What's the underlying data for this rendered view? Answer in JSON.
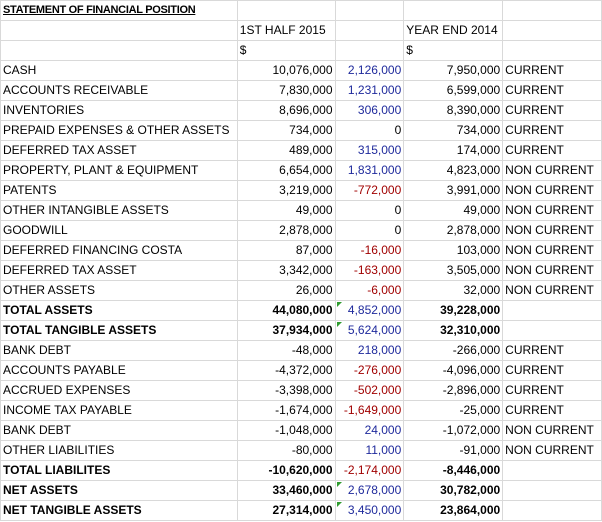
{
  "title": "STATEMENT OF FINANCIAL POSITION",
  "headers": {
    "col1": "1ST HALF 2015",
    "col3": "YEAR END 2014",
    "currency1": "$",
    "currency3": "$"
  },
  "rows": [
    {
      "label": "CASH",
      "h1": "10,076,000",
      "change": "2,126,000",
      "change_color": "blue",
      "ye": "7,950,000",
      "class": "CURRENT",
      "bold": false,
      "flag": false
    },
    {
      "label": "ACCOUNTS RECEIVABLE",
      "h1": "7,830,000",
      "change": "1,231,000",
      "change_color": "blue",
      "ye": "6,599,000",
      "class": "CURRENT",
      "bold": false,
      "flag": false
    },
    {
      "label": "INVENTORIES",
      "h1": "8,696,000",
      "change": "306,000",
      "change_color": "blue",
      "ye": "8,390,000",
      "class": "CURRENT",
      "bold": false,
      "flag": false
    },
    {
      "label": "PREPAID EXPENSES & OTHER ASSETS",
      "h1": "734,000",
      "change": "0",
      "change_color": "black",
      "ye": "734,000",
      "class": "CURRENT",
      "bold": false,
      "flag": false
    },
    {
      "label": "DEFERRED TAX ASSET",
      "h1": "489,000",
      "change": "315,000",
      "change_color": "blue",
      "ye": "174,000",
      "class": "CURRENT",
      "bold": false,
      "flag": false
    },
    {
      "label": "PROPERTY, PLANT & EQUIPMENT",
      "h1": "6,654,000",
      "change": "1,831,000",
      "change_color": "blue",
      "ye": "4,823,000",
      "class": "NON CURRENT",
      "bold": false,
      "flag": false
    },
    {
      "label": "PATENTS",
      "h1": "3,219,000",
      "change": "-772,000",
      "change_color": "red",
      "ye": "3,991,000",
      "class": "NON CURRENT",
      "bold": false,
      "flag": false
    },
    {
      "label": "OTHER INTANGIBLE ASSETS",
      "h1": "49,000",
      "change": "0",
      "change_color": "black",
      "ye": "49,000",
      "class": "NON CURRENT",
      "bold": false,
      "flag": false
    },
    {
      "label": "GOODWILL",
      "h1": "2,878,000",
      "change": "0",
      "change_color": "black",
      "ye": "2,878,000",
      "class": "NON CURRENT",
      "bold": false,
      "flag": false
    },
    {
      "label": "DEFERRED FINANCING COSTA",
      "h1": "87,000",
      "change": "-16,000",
      "change_color": "red",
      "ye": "103,000",
      "class": "NON CURRENT",
      "bold": false,
      "flag": false
    },
    {
      "label": "DEFERRED TAX ASSET",
      "h1": "3,342,000",
      "change": "-163,000",
      "change_color": "red",
      "ye": "3,505,000",
      "class": "NON CURRENT",
      "bold": false,
      "flag": false
    },
    {
      "label": "OTHER ASSETS",
      "h1": "26,000",
      "change": "-6,000",
      "change_color": "red",
      "ye": "32,000",
      "class": "NON CURRENT",
      "bold": false,
      "flag": false
    },
    {
      "label": "TOTAL ASSETS",
      "h1": "44,080,000",
      "change": "4,852,000",
      "change_color": "blue",
      "ye": "39,228,000",
      "class": "",
      "bold": true,
      "flag": true
    },
    {
      "label": "TOTAL TANGIBLE ASSETS",
      "h1": "37,934,000",
      "change": "5,624,000",
      "change_color": "blue",
      "ye": "32,310,000",
      "class": "",
      "bold": true,
      "flag": true
    },
    {
      "label": "BANK DEBT",
      "h1": "-48,000",
      "change": "218,000",
      "change_color": "blue",
      "ye": "-266,000",
      "class": "CURRENT",
      "bold": false,
      "flag": false
    },
    {
      "label": "ACCOUNTS PAYABLE",
      "h1": "-4,372,000",
      "change": "-276,000",
      "change_color": "red",
      "ye": "-4,096,000",
      "class": "CURRENT",
      "bold": false,
      "flag": false
    },
    {
      "label": "ACCRUED EXPENSES",
      "h1": "-3,398,000",
      "change": "-502,000",
      "change_color": "red",
      "ye": "-2,896,000",
      "class": "CURRENT",
      "bold": false,
      "flag": false
    },
    {
      "label": "INCOME TAX PAYABLE",
      "h1": "-1,674,000",
      "change": "-1,649,000",
      "change_color": "red",
      "ye": "-25,000",
      "class": "CURRENT",
      "bold": false,
      "flag": false
    },
    {
      "label": "BANK DEBT",
      "h1": "-1,048,000",
      "change": "24,000",
      "change_color": "blue",
      "ye": "-1,072,000",
      "class": "NON CURRENT",
      "bold": false,
      "flag": false
    },
    {
      "label": "OTHER LIABILITIES",
      "h1": "-80,000",
      "change": "11,000",
      "change_color": "blue",
      "ye": "-91,000",
      "class": "NON CURRENT",
      "bold": false,
      "flag": false
    },
    {
      "label": "TOTAL LIABILITES",
      "h1": "-10,620,000",
      "change": "-2,174,000",
      "change_color": "red",
      "ye": "-8,446,000",
      "class": "",
      "bold": true,
      "flag": false
    },
    {
      "label": "NET ASSETS",
      "h1": "33,460,000",
      "change": "2,678,000",
      "change_color": "blue",
      "ye": "30,782,000",
      "class": "",
      "bold": true,
      "flag": true
    },
    {
      "label": "NET TANGIBLE ASSETS",
      "h1": "27,314,000",
      "change": "3,450,000",
      "change_color": "blue",
      "ye": "23,864,000",
      "class": "",
      "bold": true,
      "flag": true
    }
  ]
}
